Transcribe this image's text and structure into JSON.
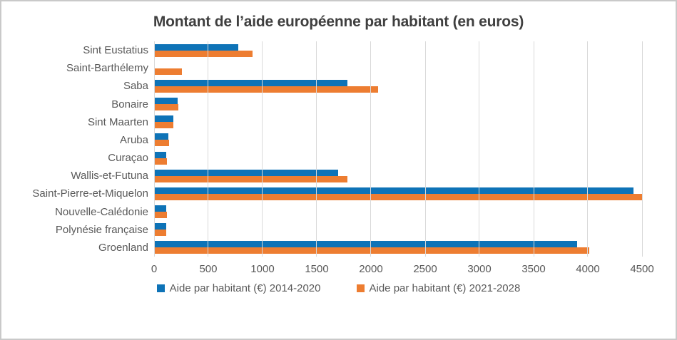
{
  "window": {
    "background": "#FFFFFF",
    "border_color": "#C9C9C9"
  },
  "chart_data": {
    "type": "bar",
    "orientation": "horizontal",
    "title": "Montant de l’aide européenne par habitant (en euros)",
    "title_color": "#3F3F3F",
    "axis_text_color": "#595959",
    "gridline_color": "#D9D9D9",
    "grid": "vertical",
    "legend_position": "bottom",
    "xlim": [
      0,
      4500
    ],
    "x_ticks": [
      0,
      500,
      1000,
      1500,
      2000,
      2500,
      3000,
      3500,
      4000,
      4500
    ],
    "categories": [
      "Sint Eustatius",
      "Saint-Barthélemy",
      "Saba",
      "Bonaire",
      "Sint Maarten",
      "Aruba",
      "Curaçao",
      "Wallis-et-Futuna",
      "Saint-Pierre-et-Miquelon",
      "Nouvelle-Calédonie",
      "Polynésie française",
      "Groenland"
    ],
    "series": [
      {
        "name": "Aide par habitant (€) 2014-2020",
        "color": "#0E73B7",
        "values": [
          775,
          0,
          1785,
          220,
          180,
          130,
          110,
          1700,
          4420,
          110,
          110,
          3900
        ]
      },
      {
        "name": "Aide par habitant (€) 2021-2028",
        "color": "#ED7D31",
        "values": [
          910,
          255,
          2065,
          225,
          180,
          135,
          120,
          1785,
          4500,
          120,
          115,
          4015
        ]
      }
    ]
  }
}
